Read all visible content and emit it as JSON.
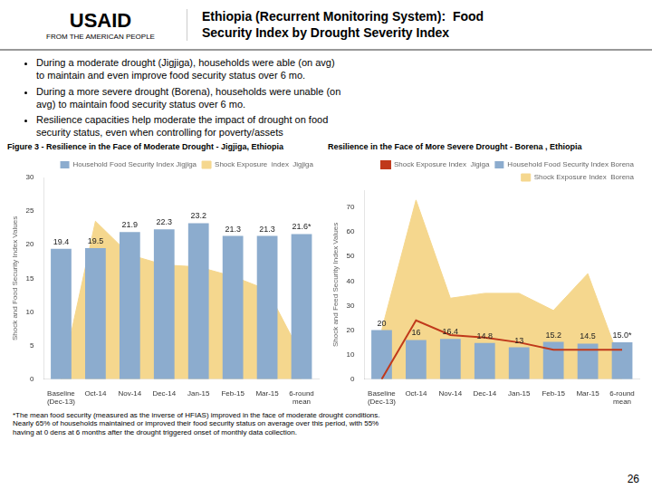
{
  "title": "Ethiopia (Recurrent Monitoring System):  Food\nSecurity Index by Drought Severity Index",
  "annotations": [
    "USAID",
    "FROM THE AMERICAN PEOPLE"
  ],
  "bullet_points": [
    "During a moderate drought (Jigjiga), households were able (on avg)\nto maintain and even improve food security status over 6 mo.",
    "During a more severe drought (Borena), households were unable (on\navg) to maintain food security status over 6 mo.",
    "Resilience capacities help moderate the impact of drought on food\nsecurity status, even when controlling for poverty/assets"
  ],
  "chart_data": [
    {
      "type": "bar",
      "title": "Figure 3 - Resilience in the Face of Moderate Drought - Jigjiga, Ethiopia",
      "categories": [
        "Baseline\n(Dec-13)",
        "Oct-14",
        "Nov-14",
        "Dec-14",
        "Jan-15",
        "Feb-15",
        "Mar-15",
        "6-round\nmean"
      ],
      "series": [
        {
          "name": "Shock Exposure  index  Jigjiga",
          "type": "area",
          "color": "#f5d78e",
          "values": [
            0,
            23.5,
            18.5,
            17.0,
            16.7,
            15.3,
            13.3,
            3.5
          ]
        },
        {
          "name": "Household Food Security Index Jigjiga",
          "type": "bar",
          "color": "#8cacce",
          "values": [
            19.4,
            19.5,
            21.9,
            22.3,
            23.2,
            21.3,
            21.3,
            21.6
          ],
          "value_labels": [
            "19.4",
            "19.5",
            "21.9",
            "22.3",
            "23.2",
            "21.3",
            "21.3",
            "21.6*"
          ]
        }
      ],
      "ylabel": "Shock and Food Security Index Values",
      "ylim": [
        0,
        30
      ],
      "yticks": [
        0,
        5,
        10,
        15,
        20,
        25,
        30
      ],
      "grid": false,
      "legend": "upper right",
      "data_labels": true,
      "footnote": "*The mean food security (measured as the inverse of HFIAS) improved in the face of moderate drought conditions.\nNearly 65% of households maintained or improved their food security status on average over this period, with 55%\nhaving at 0 dens at 6 months after the drought triggered onset of monthly data collection."
    },
    {
      "type": "bar",
      "title": "Resilience in the Face of More Severe Drought - Borena , Ethiopia",
      "categories": [
        "Baseline\n(Dec-13)",
        "Oct-14",
        "Nov-14",
        "Dec-14",
        "Jan-15",
        "Feb-15",
        "Mar-15",
        "6-round\nmean"
      ],
      "series": [
        {
          "name": "Shock Exposure Index  Borena",
          "type": "area",
          "color": "#f5d78e",
          "values": [
            20,
            73,
            33,
            35,
            35,
            28,
            43,
            5
          ]
        },
        {
          "name": "Household Food Security Index Borena",
          "type": "bar",
          "color": "#8cacce",
          "values": [
            20,
            16,
            16.4,
            14.8,
            13,
            15.2,
            14.5,
            15.0
          ],
          "value_labels": [
            "20",
            "16",
            "16.4",
            "14.8",
            "13",
            "15.2",
            "14.5",
            "15.0*"
          ]
        },
        {
          "name": "Shock Exposure Index  Jigiga",
          "type": "line",
          "color": "#c0391b",
          "values": [
            0,
            24,
            18,
            17,
            15,
            12,
            12,
            12
          ]
        }
      ],
      "ylabel": "Shock and Feed Security Index Values",
      "ylim": [
        0,
        77
      ],
      "yticks": [
        0,
        10,
        20,
        30,
        40,
        50,
        60,
        70
      ],
      "grid": false,
      "legend": "upper right",
      "data_labels": true,
      "annotations": [
        "26"
      ]
    }
  ]
}
